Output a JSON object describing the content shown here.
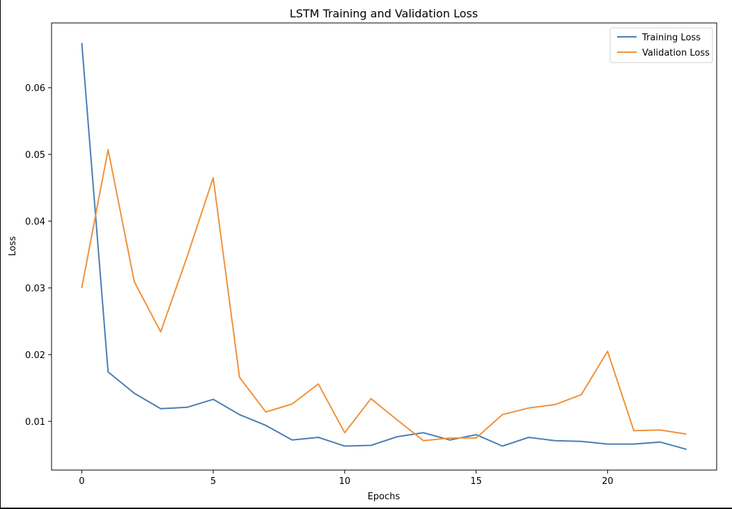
{
  "chart_data": {
    "type": "line",
    "title": "LSTM Training and Validation Loss",
    "xlabel": "Epochs",
    "ylabel": "Loss",
    "xlim": [
      -1.15,
      24.15
    ],
    "ylim": [
      0.0027,
      0.0697
    ],
    "xticks": [
      0,
      5,
      10,
      15,
      20
    ],
    "yticks": [
      0.01,
      0.02,
      0.03,
      0.04,
      0.05,
      0.06
    ],
    "grid": false,
    "legend": "top-right",
    "x": [
      0,
      1,
      2,
      3,
      4,
      5,
      6,
      7,
      8,
      9,
      10,
      11,
      12,
      13,
      14,
      15,
      16,
      17,
      18,
      19,
      20,
      21,
      22,
      23
    ],
    "series": [
      {
        "name": "Training Loss",
        "color": "#4a7db4",
        "values": [
          0.0667,
          0.0174,
          0.0142,
          0.0119,
          0.0121,
          0.0133,
          0.011,
          0.0094,
          0.0072,
          0.0076,
          0.0063,
          0.0064,
          0.0077,
          0.0083,
          0.0072,
          0.008,
          0.0063,
          0.0076,
          0.0071,
          0.007,
          0.0066,
          0.0066,
          0.0069,
          0.0058
        ]
      },
      {
        "name": "Validation Loss",
        "color": "#f0913a",
        "values": [
          0.03,
          0.0507,
          0.0309,
          0.0234,
          0.0346,
          0.0465,
          0.0166,
          0.0114,
          0.0126,
          0.0156,
          0.0083,
          0.0134,
          0.0102,
          0.0071,
          0.0075,
          0.0075,
          0.011,
          0.012,
          0.0125,
          0.014,
          0.0205,
          0.0086,
          0.0087,
          0.0081
        ]
      }
    ]
  }
}
